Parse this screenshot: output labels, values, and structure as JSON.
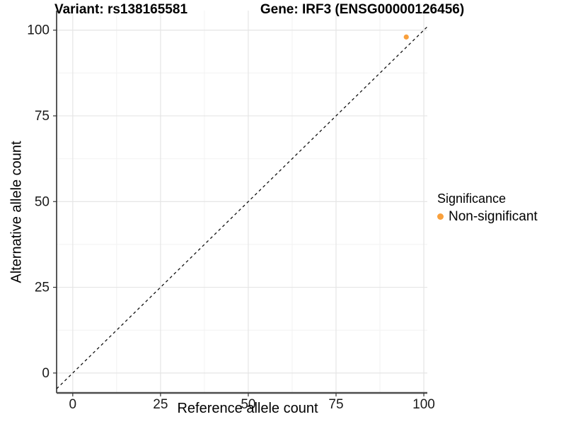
{
  "figure": {
    "title_left": "Variant: rs138165581",
    "title_right": "Gene: IRF3 (ENSG00000126456)"
  },
  "chart_data": {
    "type": "scatter",
    "title": "Variant: rs138165581   Gene: IRF3 (ENSG00000126456)",
    "xlabel": "Reference allele count",
    "ylabel": "Alternative allele count",
    "xlim": [
      -4.6,
      101.0
    ],
    "ylim": [
      -5.8,
      105.7
    ],
    "x_ticks": [
      0,
      25,
      50,
      75,
      100
    ],
    "y_ticks": [
      0,
      25,
      50,
      75,
      100
    ],
    "x_minor": [
      12.5,
      37.5,
      62.5,
      87.5
    ],
    "y_minor": [
      12.5,
      37.5,
      62.5,
      87.5
    ],
    "grid": "major+minor on white background",
    "identity_line": {
      "slope": 1,
      "intercept": 0,
      "style": "dashed",
      "color": "#111111"
    },
    "series": [
      {
        "name": "Non-significant",
        "color": "#F9A03C",
        "points": [
          {
            "x": 95,
            "y": 98
          }
        ]
      }
    ],
    "legend": {
      "title": "Significance",
      "position": "right",
      "items": [
        {
          "label": "Non-significant",
          "color": "#F9A03C"
        }
      ]
    }
  },
  "palette": {
    "background": "#ffffff",
    "grid_major": "#e5e5e5",
    "grid_minor": "#f2f2f2",
    "axis_left": "#111111",
    "axis_bottom": "#4d4d4d",
    "tick_mark": "#333333",
    "tick_text": "#1a1a1a",
    "point": "#F9A03C"
  }
}
